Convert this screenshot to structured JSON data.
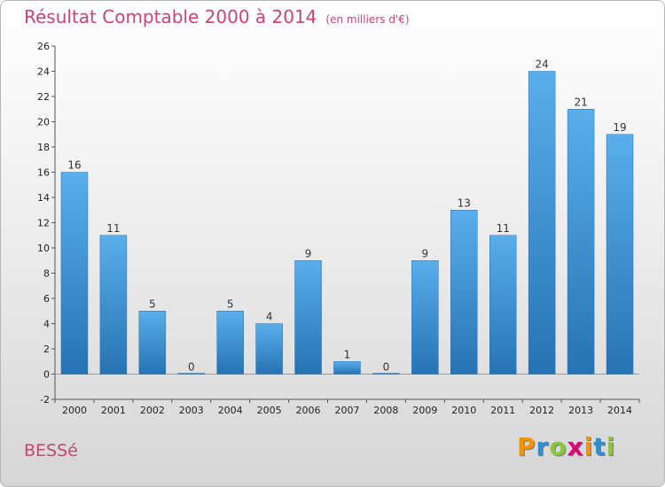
{
  "header": {
    "title": "Résultat Comptable 2000 à 2014",
    "unit": "(en milliers d'€)"
  },
  "footer": {
    "commune": "BESSé",
    "logo_text": "Proxiti",
    "logo_letters": [
      {
        "char": "P",
        "color": "#f29400"
      },
      {
        "char": "r",
        "color": "#2e8fd0"
      },
      {
        "char": "o",
        "color": "#8cc63f"
      },
      {
        "char": "x",
        "color": "#e2007a"
      },
      {
        "char": "i",
        "color": "#f29400"
      },
      {
        "char": "t",
        "color": "#2e8fd0"
      },
      {
        "char": "i",
        "color": "#8cc63f"
      }
    ]
  },
  "colors": {
    "bar_light": "#5aaeea",
    "bar_dark": "#2673b4",
    "title": "#c8466f"
  },
  "chart_data": {
    "type": "bar",
    "categories": [
      "2000",
      "2001",
      "2002",
      "2003",
      "2004",
      "2005",
      "2006",
      "2007",
      "2008",
      "2009",
      "2010",
      "2011",
      "2012",
      "2013",
      "2014"
    ],
    "values": [
      16,
      11,
      5,
      0,
      5,
      4,
      9,
      1,
      0,
      9,
      13,
      11,
      24,
      21,
      19
    ],
    "ylim": [
      -2,
      26
    ],
    "yticks": [
      -2,
      0,
      2,
      4,
      6,
      8,
      10,
      12,
      14,
      16,
      18,
      20,
      22,
      24,
      26
    ],
    "grid": false,
    "data_labels": true
  }
}
